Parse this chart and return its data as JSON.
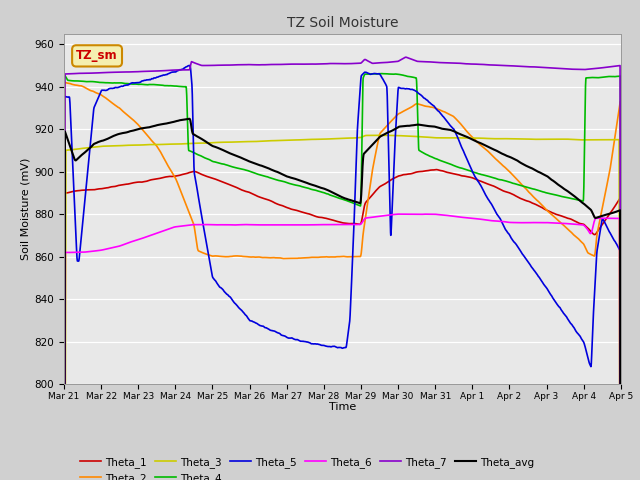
{
  "title": "TZ Soil Moisture",
  "xlabel": "Time",
  "ylabel": "Soil Moisture (mV)",
  "ylim": [
    800,
    965
  ],
  "yticks": [
    800,
    820,
    840,
    860,
    880,
    900,
    920,
    940,
    960
  ],
  "plot_bg": "#e8e8e8",
  "fig_bg": "#d0d0d0",
  "legend_label": "TZ_sm",
  "legend_box_facecolor": "#f5efb0",
  "legend_box_edgecolor": "#cc8800",
  "series_colors": {
    "Theta_1": "#cc0000",
    "Theta_2": "#ff8800",
    "Theta_3": "#cccc00",
    "Theta_4": "#00bb00",
    "Theta_5": "#0000dd",
    "Theta_6": "#ff00ff",
    "Theta_7": "#8800cc",
    "Theta_avg": "#000000"
  },
  "x_tick_labels": [
    "Mar 21",
    "Mar 22",
    "Mar 23",
    "Mar 24",
    "Mar 25",
    "Mar 26",
    "Mar 27",
    "Mar 28",
    "Mar 29",
    "Mar 30",
    "Mar 31",
    "Apr 1",
    "Apr 2",
    "Apr 3",
    "Apr 4",
    "Apr 5"
  ],
  "grid_color": "#ffffff",
  "linewidth": 1.2
}
